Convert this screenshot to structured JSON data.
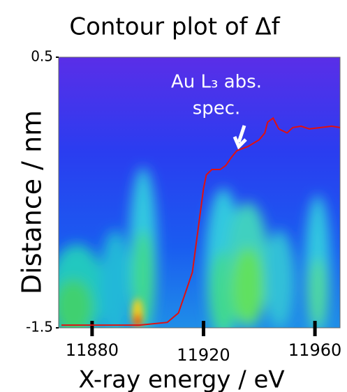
{
  "chart_data": {
    "type": "line",
    "title": "Contour plot of Δf",
    "annotation": [
      "Au L₃ abs.",
      "spec."
    ],
    "x_label": "X-ray energy / eV",
    "y_label": "Distance / nm",
    "x": [
      11869,
      11897,
      11907,
      11911,
      11913,
      11916,
      11918,
      11920,
      11921,
      11923,
      11926,
      11928,
      11930,
      11932,
      11936,
      11940,
      11942,
      11943,
      11945,
      11947,
      11950,
      11952,
      11955,
      11958,
      11962,
      11966,
      11969
    ],
    "values": [
      -1.48,
      -1.48,
      -1.46,
      -1.39,
      -1.27,
      -1.09,
      -0.78,
      -0.47,
      -0.37,
      -0.33,
      -0.33,
      -0.3,
      -0.24,
      -0.19,
      -0.16,
      -0.11,
      -0.06,
      0.02,
      0.05,
      -0.03,
      -0.06,
      -0.02,
      -0.01,
      -0.03,
      -0.02,
      -0.01,
      -0.02
    ],
    "color": "#e01010",
    "xlim": [
      11868,
      11969
    ],
    "ylim": [
      -1.5,
      0.5
    ],
    "xticks": [
      11880,
      11920,
      11960
    ],
    "yticks": [
      -1.5,
      0.5
    ]
  }
}
